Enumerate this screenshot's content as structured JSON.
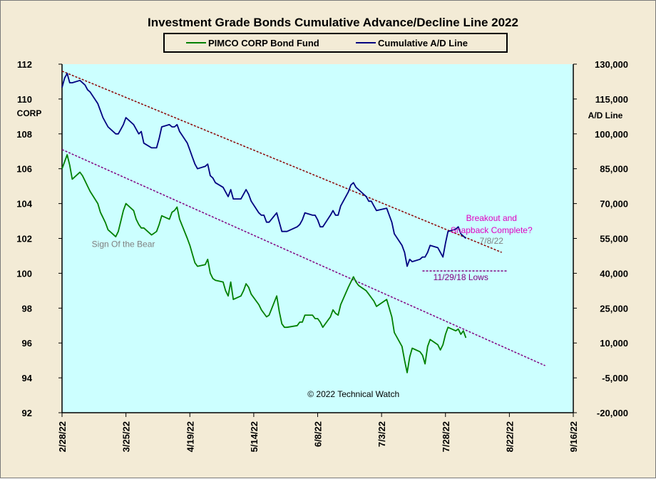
{
  "chart_data": {
    "type": "line",
    "title": "Investment  Grade  Bonds  Cumulative  Advance/Decline  Line  2022",
    "ylabel_left": "CORP",
    "ylabel_right": "A/D Line",
    "x_tick_labels": [
      "2/28/22",
      "3/25/22",
      "4/19/22",
      "5/14/22",
      "6/8/22",
      "7/3/22",
      "7/28/22",
      "8/22/22",
      "9/16/22"
    ],
    "x_range": [
      "2022-02-28",
      "2022-09-16"
    ],
    "y_left_ticks": [
      "92",
      "94",
      "96",
      "98",
      "100",
      "102",
      "104",
      "106",
      "108",
      "110",
      "112"
    ],
    "y_left_range": [
      92,
      112
    ],
    "y_right_ticks": [
      "-20,000",
      "-5,000",
      "10,000",
      "25,000",
      "40,000",
      "55,000",
      "70,000",
      "85,000",
      "100,000",
      "115,000",
      "130,000"
    ],
    "y_right_range": [
      -20000,
      130000
    ],
    "legend_position": "top-center",
    "series": [
      {
        "name": "PIMCO CORP Bond Fund",
        "axis": "left",
        "color": "#008000",
        "points": [
          [
            "2022-02-28",
            106.0
          ],
          [
            "2022-03-01",
            106.4
          ],
          [
            "2022-03-02",
            106.8
          ],
          [
            "2022-03-03",
            106.2
          ],
          [
            "2022-03-04",
            105.4
          ],
          [
            "2022-03-07",
            105.8
          ],
          [
            "2022-03-08",
            105.6
          ],
          [
            "2022-03-09",
            105.3
          ],
          [
            "2022-03-10",
            105.0
          ],
          [
            "2022-03-11",
            104.7
          ],
          [
            "2022-03-14",
            104.0
          ],
          [
            "2022-03-15",
            103.5
          ],
          [
            "2022-03-16",
            103.2
          ],
          [
            "2022-03-17",
            102.9
          ],
          [
            "2022-03-18",
            102.5
          ],
          [
            "2022-03-21",
            102.1
          ],
          [
            "2022-03-22",
            102.4
          ],
          [
            "2022-03-23",
            103.0
          ],
          [
            "2022-03-24",
            103.6
          ],
          [
            "2022-03-25",
            104.0
          ],
          [
            "2022-03-28",
            103.6
          ],
          [
            "2022-03-29",
            103.1
          ],
          [
            "2022-03-30",
            102.8
          ],
          [
            "2022-03-31",
            102.6
          ],
          [
            "2022-04-01",
            102.6
          ],
          [
            "2022-04-04",
            102.2
          ],
          [
            "2022-04-05",
            102.3
          ],
          [
            "2022-04-06",
            102.4
          ],
          [
            "2022-04-07",
            102.8
          ],
          [
            "2022-04-08",
            103.3
          ],
          [
            "2022-04-11",
            103.1
          ],
          [
            "2022-04-12",
            103.5
          ],
          [
            "2022-04-13",
            103.6
          ],
          [
            "2022-04-14",
            103.8
          ],
          [
            "2022-04-15",
            103.1
          ],
          [
            "2022-04-18",
            102.0
          ],
          [
            "2022-04-19",
            101.6
          ],
          [
            "2022-04-20",
            101.1
          ],
          [
            "2022-04-21",
            100.6
          ],
          [
            "2022-04-22",
            100.4
          ],
          [
            "2022-04-25",
            100.5
          ],
          [
            "2022-04-26",
            100.8
          ],
          [
            "2022-04-27",
            100.0
          ],
          [
            "2022-04-28",
            99.7
          ],
          [
            "2022-04-29",
            99.6
          ],
          [
            "2022-05-02",
            99.5
          ],
          [
            "2022-05-03",
            99.0
          ],
          [
            "2022-05-04",
            98.7
          ],
          [
            "2022-05-05",
            99.5
          ],
          [
            "2022-05-06",
            98.5
          ],
          [
            "2022-05-09",
            98.7
          ],
          [
            "2022-05-10",
            99.0
          ],
          [
            "2022-05-11",
            99.4
          ],
          [
            "2022-05-12",
            99.2
          ],
          [
            "2022-05-13",
            98.8
          ],
          [
            "2022-05-16",
            98.2
          ],
          [
            "2022-05-17",
            97.9
          ],
          [
            "2022-05-18",
            97.7
          ],
          [
            "2022-05-19",
            97.5
          ],
          [
            "2022-05-20",
            97.6
          ],
          [
            "2022-05-23",
            98.7
          ],
          [
            "2022-05-24",
            97.8
          ],
          [
            "2022-05-25",
            97.1
          ],
          [
            "2022-05-26",
            96.9
          ],
          [
            "2022-05-27",
            96.9
          ],
          [
            "2022-05-31",
            97.0
          ],
          [
            "2022-06-01",
            97.2
          ],
          [
            "2022-06-02",
            97.2
          ],
          [
            "2022-06-03",
            97.6
          ],
          [
            "2022-06-06",
            97.6
          ],
          [
            "2022-06-07",
            97.4
          ],
          [
            "2022-06-08",
            97.4
          ],
          [
            "2022-06-09",
            97.2
          ],
          [
            "2022-06-10",
            96.9
          ],
          [
            "2022-06-13",
            97.5
          ],
          [
            "2022-06-14",
            97.9
          ],
          [
            "2022-06-15",
            97.7
          ],
          [
            "2022-06-16",
            97.6
          ],
          [
            "2022-06-17",
            98.2
          ],
          [
            "2022-06-20",
            99.2
          ],
          [
            "2022-06-21",
            99.5
          ],
          [
            "2022-06-22",
            99.8
          ],
          [
            "2022-06-23",
            99.5
          ],
          [
            "2022-06-24",
            99.3
          ],
          [
            "2022-06-27",
            99.0
          ],
          [
            "2022-06-28",
            98.8
          ],
          [
            "2022-06-29",
            98.6
          ],
          [
            "2022-06-30",
            98.4
          ],
          [
            "2022-07-01",
            98.1
          ],
          [
            "2022-07-05",
            98.5
          ],
          [
            "2022-07-06",
            98.0
          ],
          [
            "2022-07-07",
            97.5
          ],
          [
            "2022-07-08",
            96.6
          ],
          [
            "2022-07-11",
            95.8
          ],
          [
            "2022-07-12",
            95.0
          ],
          [
            "2022-07-13",
            94.3
          ],
          [
            "2022-07-14",
            95.2
          ],
          [
            "2022-07-15",
            95.7
          ],
          [
            "2022-07-18",
            95.5
          ],
          [
            "2022-07-19",
            95.3
          ],
          [
            "2022-07-20",
            94.8
          ],
          [
            "2022-07-21",
            95.8
          ],
          [
            "2022-07-22",
            96.2
          ],
          [
            "2022-07-25",
            95.9
          ],
          [
            "2022-07-26",
            95.6
          ],
          [
            "2022-07-27",
            95.9
          ],
          [
            "2022-07-28",
            96.5
          ],
          [
            "2022-07-29",
            96.9
          ],
          [
            "2022-08-01",
            96.7
          ],
          [
            "2022-08-02",
            96.8
          ],
          [
            "2022-08-03",
            96.5
          ],
          [
            "2022-08-04",
            96.7
          ],
          [
            "2022-08-05",
            96.3
          ]
        ]
      },
      {
        "name": "Cumulative A/D Line",
        "axis": "right",
        "color": "#000080",
        "points": [
          [
            "2022-02-28",
            120000
          ],
          [
            "2022-03-01",
            124000
          ],
          [
            "2022-03-02",
            126000
          ],
          [
            "2022-03-03",
            122000
          ],
          [
            "2022-03-04",
            122000
          ],
          [
            "2022-03-07",
            123000
          ],
          [
            "2022-03-08",
            122000
          ],
          [
            "2022-03-09",
            121000
          ],
          [
            "2022-03-10",
            119000
          ],
          [
            "2022-03-11",
            118000
          ],
          [
            "2022-03-14",
            113000
          ],
          [
            "2022-03-15",
            110000
          ],
          [
            "2022-03-16",
            107000
          ],
          [
            "2022-03-17",
            105000
          ],
          [
            "2022-03-18",
            103000
          ],
          [
            "2022-03-21",
            100000
          ],
          [
            "2022-03-22",
            100000
          ],
          [
            "2022-03-23",
            102000
          ],
          [
            "2022-03-24",
            104000
          ],
          [
            "2022-03-25",
            107000
          ],
          [
            "2022-03-28",
            104000
          ],
          [
            "2022-03-29",
            102000
          ],
          [
            "2022-03-30",
            100000
          ],
          [
            "2022-03-31",
            101000
          ],
          [
            "2022-04-01",
            96000
          ],
          [
            "2022-04-04",
            94000
          ],
          [
            "2022-04-05",
            94000
          ],
          [
            "2022-04-06",
            94000
          ],
          [
            "2022-04-07",
            98000
          ],
          [
            "2022-04-08",
            103000
          ],
          [
            "2022-04-11",
            104000
          ],
          [
            "2022-04-12",
            103000
          ],
          [
            "2022-04-13",
            103000
          ],
          [
            "2022-04-14",
            104000
          ],
          [
            "2022-04-15",
            101000
          ],
          [
            "2022-04-18",
            96000
          ],
          [
            "2022-04-19",
            93000
          ],
          [
            "2022-04-20",
            90000
          ],
          [
            "2022-04-21",
            87000
          ],
          [
            "2022-04-22",
            85000
          ],
          [
            "2022-04-25",
            86000
          ],
          [
            "2022-04-26",
            87000
          ],
          [
            "2022-04-27",
            82000
          ],
          [
            "2022-04-28",
            81000
          ],
          [
            "2022-04-29",
            79000
          ],
          [
            "2022-05-02",
            77000
          ],
          [
            "2022-05-03",
            75000
          ],
          [
            "2022-05-04",
            73000
          ],
          [
            "2022-05-05",
            76000
          ],
          [
            "2022-05-06",
            72000
          ],
          [
            "2022-05-09",
            72000
          ],
          [
            "2022-05-10",
            74000
          ],
          [
            "2022-05-11",
            76000
          ],
          [
            "2022-05-12",
            74000
          ],
          [
            "2022-05-13",
            71000
          ],
          [
            "2022-05-16",
            66000
          ],
          [
            "2022-05-17",
            65000
          ],
          [
            "2022-05-18",
            65000
          ],
          [
            "2022-05-19",
            62000
          ],
          [
            "2022-05-20",
            62000
          ],
          [
            "2022-05-23",
            66000
          ],
          [
            "2022-05-24",
            62000
          ],
          [
            "2022-05-25",
            58000
          ],
          [
            "2022-05-26",
            58000
          ],
          [
            "2022-05-27",
            58000
          ],
          [
            "2022-05-31",
            60000
          ],
          [
            "2022-06-01",
            61000
          ],
          [
            "2022-06-02",
            63000
          ],
          [
            "2022-06-03",
            66000
          ],
          [
            "2022-06-06",
            65000
          ],
          [
            "2022-06-07",
            65000
          ],
          [
            "2022-06-08",
            63000
          ],
          [
            "2022-06-09",
            60000
          ],
          [
            "2022-06-10",
            60000
          ],
          [
            "2022-06-13",
            65000
          ],
          [
            "2022-06-14",
            67000
          ],
          [
            "2022-06-15",
            65000
          ],
          [
            "2022-06-16",
            65000
          ],
          [
            "2022-06-17",
            69000
          ],
          [
            "2022-06-20",
            75000
          ],
          [
            "2022-06-21",
            78000
          ],
          [
            "2022-06-22",
            79000
          ],
          [
            "2022-06-23",
            77000
          ],
          [
            "2022-06-24",
            76000
          ],
          [
            "2022-06-27",
            73000
          ],
          [
            "2022-06-28",
            71000
          ],
          [
            "2022-06-29",
            71000
          ],
          [
            "2022-06-30",
            69000
          ],
          [
            "2022-07-01",
            67000
          ],
          [
            "2022-07-05",
            68000
          ],
          [
            "2022-07-06",
            65000
          ],
          [
            "2022-07-07",
            62000
          ],
          [
            "2022-07-08",
            57000
          ],
          [
            "2022-07-11",
            52000
          ],
          [
            "2022-07-12",
            49000
          ],
          [
            "2022-07-13",
            43000
          ],
          [
            "2022-07-14",
            46000
          ],
          [
            "2022-07-15",
            45000
          ],
          [
            "2022-07-18",
            46000
          ],
          [
            "2022-07-19",
            47000
          ],
          [
            "2022-07-20",
            47000
          ],
          [
            "2022-07-21",
            49000
          ],
          [
            "2022-07-22",
            52000
          ],
          [
            "2022-07-25",
            51000
          ],
          [
            "2022-07-26",
            49000
          ],
          [
            "2022-07-27",
            47000
          ],
          [
            "2022-07-28",
            53000
          ],
          [
            "2022-07-29",
            58000
          ],
          [
            "2022-08-01",
            59000
          ],
          [
            "2022-08-02",
            60000
          ],
          [
            "2022-08-03",
            57000
          ],
          [
            "2022-08-04",
            56000
          ],
          [
            "2022-08-05",
            55000
          ]
        ]
      }
    ],
    "trendlines": [
      {
        "axis": "right",
        "color": "#8b0000",
        "points": [
          [
            "2022-02-28",
            127000
          ],
          [
            "2022-08-19",
            49000
          ]
        ]
      },
      {
        "axis": "left",
        "color": "#800080",
        "points": [
          [
            "2022-02-28",
            107.1
          ],
          [
            "2022-09-05",
            94.7
          ]
        ]
      },
      {
        "axis": "right",
        "color": "#800080",
        "points": [
          [
            "2022-07-19",
            41000
          ],
          [
            "2022-08-21",
            41000
          ]
        ]
      }
    ],
    "annotations": [
      {
        "text": "Sign Of the Bear",
        "color": "#808080",
        "at": [
          "2022-03-24",
          101.5
        ]
      },
      {
        "text": "Breakout and",
        "color": "#e000c0",
        "at": [
          "2022-08-15",
          103.0
        ]
      },
      {
        "text": "Snapback Complete?",
        "color": "#e000c0",
        "at": [
          "2022-08-15",
          102.3
        ]
      },
      {
        "text": "7/8/22",
        "color": "#808080",
        "at": [
          "2022-08-15",
          101.7
        ]
      },
      {
        "text": "11/29/18 Lows",
        "color": "#800080",
        "at": [
          "2022-08-03",
          99.6
        ]
      },
      {
        "text": "© 2022 Technical Watch",
        "color": "#000000",
        "at": [
          "2022-06-22",
          92.9
        ]
      }
    ],
    "grid": false
  }
}
